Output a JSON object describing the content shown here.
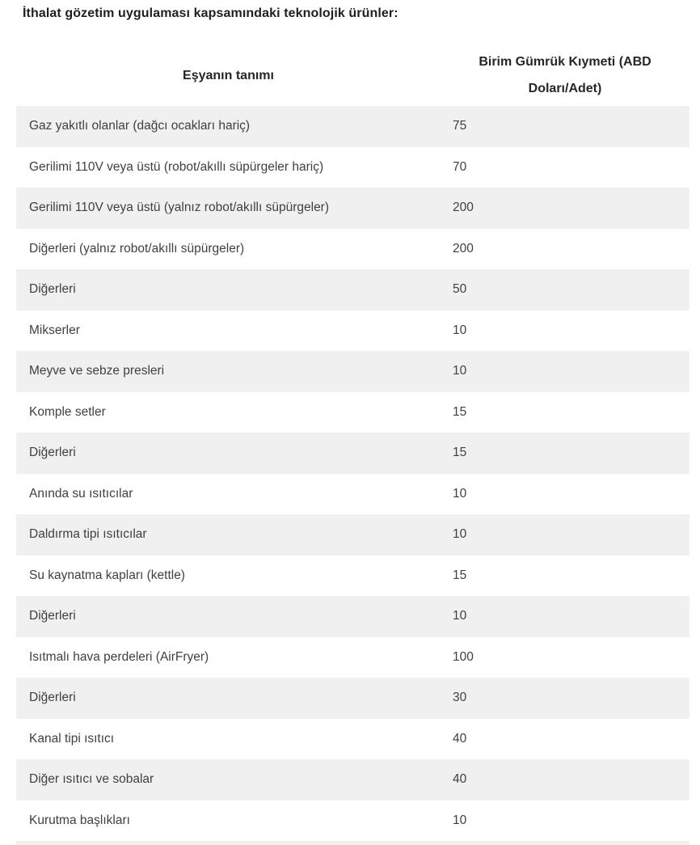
{
  "page": {
    "title": "İthalat gözetim uygulaması kapsamındaki teknolojik ürünler:"
  },
  "table": {
    "columns": [
      {
        "label": "Eşyanın tanımı"
      },
      {
        "label": "Birim Gümrük Kıymeti (ABD Doları/Adet)"
      }
    ],
    "rows": [
      {
        "name": "Gaz yakıtlı olanlar (dağcı ocakları hariç)",
        "value": "75"
      },
      {
        "name": "Gerilimi 110V veya üstü (robot/akıllı süpürgeler hariç)",
        "value": "70"
      },
      {
        "name": "Gerilimi 110V veya üstü (yalnız robot/akıllı süpürgeler)",
        "value": "200"
      },
      {
        "name": "Diğerleri (yalnız robot/akıllı süpürgeler)",
        "value": "200"
      },
      {
        "name": "Diğerleri",
        "value": "50"
      },
      {
        "name": "Mikserler",
        "value": "10"
      },
      {
        "name": "Meyve ve sebze presleri",
        "value": "10"
      },
      {
        "name": "Komple setler",
        "value": "15"
      },
      {
        "name": "Diğerleri",
        "value": "15"
      },
      {
        "name": "Anında su ısıtıcılar",
        "value": "10"
      },
      {
        "name": "Daldırma tipi ısıtıcılar",
        "value": "10"
      },
      {
        "name": "Su kaynatma kapları (kettle)",
        "value": "15"
      },
      {
        "name": "Diğerleri",
        "value": "10"
      },
      {
        "name": "Isıtmalı hava perdeleri (AirFryer)",
        "value": "100"
      },
      {
        "name": "Diğerleri",
        "value": "30"
      },
      {
        "name": "Kanal tipi ısıtıcı",
        "value": "40"
      },
      {
        "name": "Diğer ısıtıcı ve sobalar",
        "value": "40"
      },
      {
        "name": "Kurutma başlıkları",
        "value": "10"
      }
    ],
    "has_partial_next_row": true
  },
  "colors": {
    "alt_row_bg": "#f0f0f0",
    "row_text": "#404040",
    "heading_text": "#262626",
    "title_text": "#1f1f1f"
  }
}
